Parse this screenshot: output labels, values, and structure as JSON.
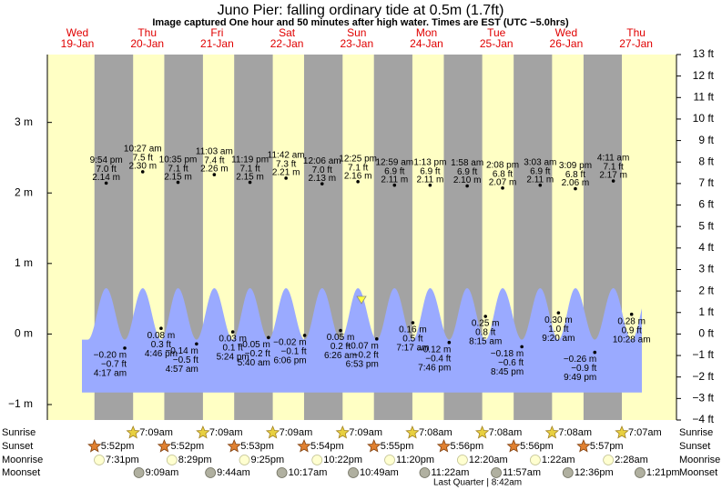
{
  "title": "Juno Pier: falling  ordinary tide at 0.5m (1.7ft)",
  "subtitle": "Image captured One hour and 50 minutes after high water. Times are EST (UTC −5.0hrs)",
  "chart_data": {
    "type": "tide",
    "ylim": [
      -1.2192,
      3.9624
    ],
    "yticks": [
      {
        "value": 3,
        "label": "3 m"
      },
      {
        "value": 2,
        "label": "2 m"
      },
      {
        "value": 1,
        "label": "1 m"
      },
      {
        "value": 0,
        "label": "0 m"
      },
      {
        "value": -1,
        "label": "−1 m"
      }
    ],
    "y2lim": [
      -4,
      13
    ],
    "y2ticks": [
      {
        "value": 13,
        "label": "13 ft"
      },
      {
        "value": 12,
        "label": "12 ft"
      },
      {
        "value": 11,
        "label": "11 ft"
      },
      {
        "value": 10,
        "label": "10 ft"
      },
      {
        "value": 9,
        "label": "9 ft"
      },
      {
        "value": 8,
        "label": "8 ft"
      },
      {
        "value": 7,
        "label": "7 ft"
      },
      {
        "value": 6,
        "label": "6 ft"
      },
      {
        "value": 5,
        "label": "5 ft"
      },
      {
        "value": 4,
        "label": "4 ft"
      },
      {
        "value": 3,
        "label": "3 ft"
      },
      {
        "value": 2,
        "label": "2 ft"
      },
      {
        "value": 1,
        "label": "1 ft"
      },
      {
        "value": 0,
        "label": "0 ft"
      },
      {
        "value": -1,
        "label": "−1 ft"
      },
      {
        "value": -2,
        "label": "−2 ft"
      },
      {
        "value": -3,
        "label": "−3 ft"
      },
      {
        "value": -4,
        "label": "−4 ft"
      }
    ],
    "row_labels": [
      "Sunrise",
      "Sunset",
      "Moonrise",
      "Moonset"
    ],
    "moon_phase": "Last Quarter | 8:42am",
    "days": [
      {
        "weekday": "Wed",
        "date": "19-Jan",
        "sunset": "5:52pm",
        "moonrise": "7:31pm",
        "high_tides": [
          {
            "time": "9:54 pm",
            "height_m": {
              "value": 2.14,
              "label": "2.14 m"
            },
            "height_ft": "7.0 ft"
          }
        ],
        "low_tides": []
      },
      {
        "weekday": "Thu",
        "date": "20-Jan",
        "sunrise": "7:09am",
        "sunset": "5:52pm",
        "moonrise": "8:29pm",
        "moonset": "9:09am",
        "high_tides": [
          {
            "time": "10:27 am",
            "height_m": {
              "value": 2.3,
              "label": "2.30 m"
            },
            "height_ft": "7.5 ft"
          },
          {
            "time": "10:35 pm",
            "height_m": {
              "value": 2.15,
              "label": "2.15 m"
            },
            "height_ft": "7.1 ft"
          }
        ],
        "low_tides": [
          {
            "time": "4:17 am",
            "height_m": {
              "value": -0.2,
              "label": "−0.20 m"
            },
            "height_ft": "−0.7 ft"
          },
          {
            "time": "4:46 pm",
            "height_m": {
              "value": 0.08,
              "label": "0.08 m"
            },
            "height_ft": "0.3 ft"
          }
        ]
      },
      {
        "weekday": "Fri",
        "date": "21-Jan",
        "sunrise": "7:09am",
        "sunset": "5:53pm",
        "moonrise": "9:25pm",
        "moonset": "9:44am",
        "high_tides": [
          {
            "time": "11:03 am",
            "height_m": {
              "value": 2.26,
              "label": "2.26 m"
            },
            "height_ft": "7.4 ft"
          },
          {
            "time": "11:19 pm",
            "height_m": {
              "value": 2.15,
              "label": "2.15 m"
            },
            "height_ft": "7.1 ft"
          }
        ],
        "low_tides": [
          {
            "time": "4:57 am",
            "height_m": {
              "value": -0.14,
              "label": "−0.14 m"
            },
            "height_ft": "−0.5 ft"
          },
          {
            "time": "5:24 pm",
            "height_m": {
              "value": 0.03,
              "label": "0.03 m"
            },
            "height_ft": "0.1 ft"
          }
        ]
      },
      {
        "weekday": "Sat",
        "date": "22-Jan",
        "sunrise": "7:09am",
        "sunset": "5:54pm",
        "moonrise": "10:22pm",
        "moonset": "10:17am",
        "high_tides": [
          {
            "time": "11:42 am",
            "height_m": {
              "value": 2.21,
              "label": "2.21 m"
            },
            "height_ft": "7.3 ft"
          }
        ],
        "low_tides": [
          {
            "time": "5:40 am",
            "height_m": {
              "value": -0.05,
              "label": "−0.05 m"
            },
            "height_ft": "−0.2 ft"
          },
          {
            "time": "6:06 pm",
            "height_m": {
              "value": -0.02,
              "label": "−0.02 m"
            },
            "height_ft": "−0.1 ft"
          }
        ]
      },
      {
        "weekday": "Sun",
        "date": "23-Jan",
        "sunrise": "7:09am",
        "sunset": "5:55pm",
        "moonrise": "11:20pm",
        "moonset": "10:49am",
        "high_tides": [
          {
            "time": "12:06 am",
            "height_m": {
              "value": 2.13,
              "label": "2.13 m"
            },
            "height_ft": "7.0 ft"
          },
          {
            "time": "12:25 pm",
            "height_m": {
              "value": 2.16,
              "label": "2.16 m"
            },
            "height_ft": "7.1 ft"
          }
        ],
        "low_tides": [
          {
            "time": "6:26 am",
            "height_m": {
              "value": 0.05,
              "label": "0.05 m"
            },
            "height_ft": "0.2 ft"
          },
          {
            "time": "6:53 pm",
            "height_m": {
              "value": -0.07,
              "label": "−0.07 m"
            },
            "height_ft": "−0.2 ft"
          }
        ]
      },
      {
        "weekday": "Mon",
        "date": "24-Jan",
        "sunrise": "7:08am",
        "sunset": "5:56pm",
        "moonset": "11:22am",
        "high_tides": [
          {
            "time": "12:59 am",
            "height_m": {
              "value": 2.11,
              "label": "2.11 m"
            },
            "height_ft": "6.9 ft"
          },
          {
            "time": "1:13 pm",
            "height_m": {
              "value": 2.11,
              "label": "2.11 m"
            },
            "height_ft": "6.9 ft"
          }
        ],
        "low_tides": [
          {
            "time": "7:17 am",
            "height_m": {
              "value": 0.16,
              "label": "0.16 m"
            },
            "height_ft": "0.5 ft"
          },
          {
            "time": "7:46 pm",
            "height_m": {
              "value": -0.12,
              "label": "−0.12 m"
            },
            "height_ft": "−0.4 ft"
          }
        ]
      },
      {
        "weekday": "Tue",
        "date": "25-Jan",
        "sunrise": "7:08am",
        "sunset": "5:56pm",
        "moonrise": "12:20am",
        "moonset": "11:57am",
        "high_tides": [
          {
            "time": "1:58 am",
            "height_m": {
              "value": 2.1,
              "label": "2.10 m"
            },
            "height_ft": "6.9 ft"
          },
          {
            "time": "2:08 pm",
            "height_m": {
              "value": 2.07,
              "label": "2.07 m"
            },
            "height_ft": "6.8 ft"
          }
        ],
        "low_tides": [
          {
            "time": "8:15 am",
            "height_m": {
              "value": 0.25,
              "label": "0.25 m"
            },
            "height_ft": "0.8 ft"
          },
          {
            "time": "8:45 pm",
            "height_m": {
              "value": -0.18,
              "label": "−0.18 m"
            },
            "height_ft": "−0.6 ft"
          }
        ]
      },
      {
        "weekday": "Wed",
        "date": "26-Jan",
        "sunrise": "7:08am",
        "sunset": "5:57pm",
        "moonrise": "1:22am",
        "moonset": "12:36pm",
        "high_tides": [
          {
            "time": "3:03 am",
            "height_m": {
              "value": 2.11,
              "label": "2.11 m"
            },
            "height_ft": "6.9 ft"
          },
          {
            "time": "3:09 pm",
            "height_m": {
              "value": 2.06,
              "label": "2.06 m"
            },
            "height_ft": "6.8 ft"
          }
        ],
        "low_tides": [
          {
            "time": "9:20 am",
            "height_m": {
              "value": 0.3,
              "label": "0.30 m"
            },
            "height_ft": "1.0 ft"
          },
          {
            "time": "9:49 pm",
            "height_m": {
              "value": -0.26,
              "label": "−0.26 m"
            },
            "height_ft": "−0.9 ft"
          }
        ]
      },
      {
        "weekday": "Thu",
        "date": "27-Jan",
        "sunrise": "7:07am",
        "moonrise": "2:28am",
        "moonset": "1:21pm",
        "high_tides": [
          {
            "time": "4:11 am",
            "height_m": {
              "value": 2.17,
              "label": "2.17 m"
            },
            "height_ft": "7.1 ft"
          }
        ],
        "low_tides": [
          {
            "time": "10:28 am",
            "height_m": {
              "value": 0.28,
              "label": "0.28 m"
            },
            "height_ft": "0.9 ft"
          }
        ]
      }
    ]
  }
}
